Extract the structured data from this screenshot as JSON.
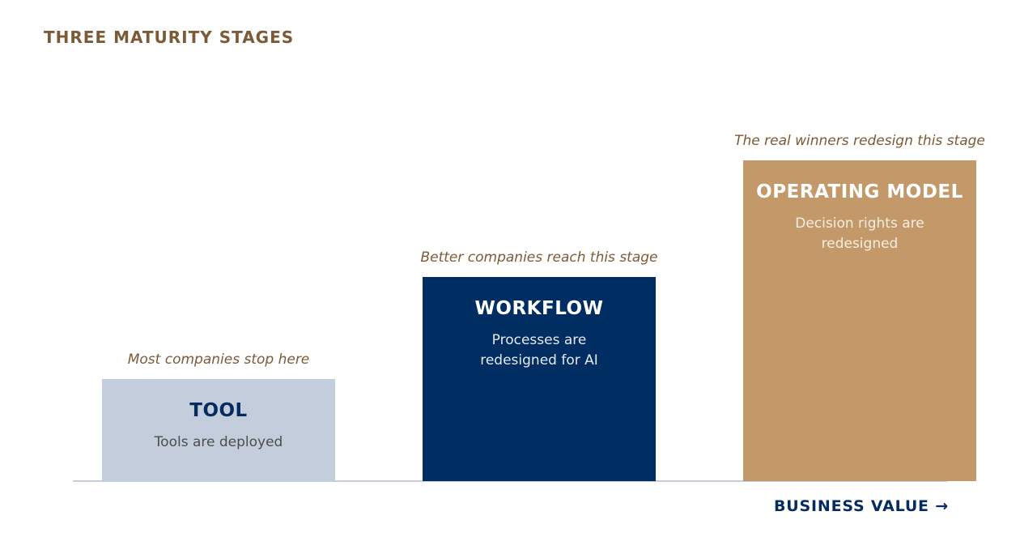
{
  "title": "THREE MATURITY STAGES",
  "stages": [
    {
      "caption": "Most companies stop here",
      "title": "TOOL",
      "description": "Tools are deployed",
      "color": "#c3cddc"
    },
    {
      "caption": "Better companies reach this stage",
      "title": "WORKFLOW",
      "description": "Processes are redesigned for AI",
      "color": "#002d62"
    },
    {
      "caption": "The real winners redesign this stage",
      "title": "OPERATING MODEL",
      "description": "Decision rights are redesigned",
      "color": "#c4996a"
    }
  ],
  "axis_label": "BUSINESS VALUE →",
  "colors": {
    "title": "#7d5a36",
    "caption": "#7d5a36",
    "axis": "#062c5f",
    "baseline": "#c5cddc"
  }
}
